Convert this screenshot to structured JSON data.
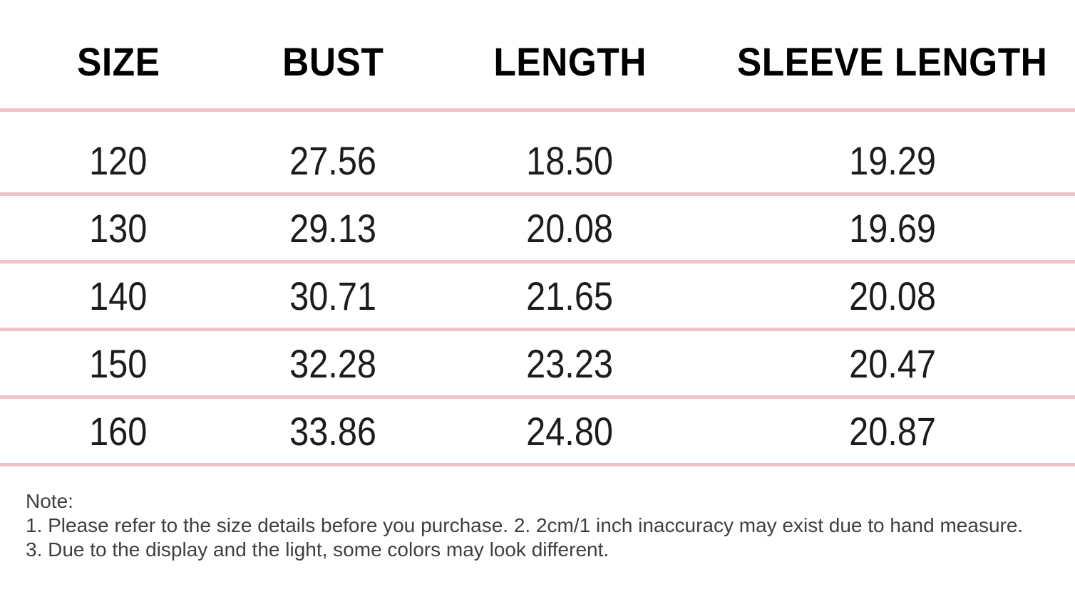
{
  "chart_data": {
    "type": "table",
    "columns": [
      "SIZE",
      "BUST",
      "LENGTH",
      "SLEEVE LENGTH"
    ],
    "rows": [
      [
        "120",
        "27.56",
        "18.50",
        "19.29"
      ],
      [
        "130",
        "29.13",
        "20.08",
        "19.69"
      ],
      [
        "140",
        "30.71",
        "21.65",
        "20.08"
      ],
      [
        "150",
        "32.28",
        "23.23",
        "20.47"
      ],
      [
        "160",
        "33.86",
        "24.80",
        "20.87"
      ]
    ]
  },
  "note": {
    "label": "Note:",
    "lines": [
      "1. Please refer to the size details before you purchase. 2. 2cm/1 inch inaccuracy may exist due to hand measure.",
      "3. Due to the display and the light, some colors may look different."
    ]
  },
  "colors": {
    "background": "#ffffff",
    "divider": "#f0c3c9",
    "header_text": "#000000",
    "cell_text": "#1c1c1c",
    "note_text": "#3f3f3f"
  }
}
